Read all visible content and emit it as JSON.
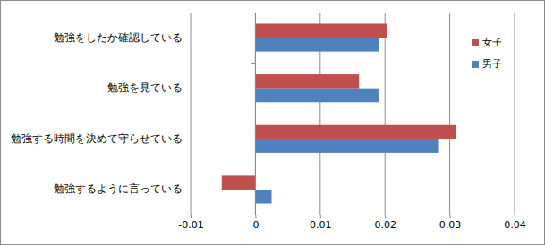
{
  "chart_data": {
    "type": "bar",
    "orientation": "horizontal",
    "categories": [
      "勉強をしたか確認している",
      "勉強を見ている",
      "勉強する時間を決めて守らせている",
      "勉強するように言っている"
    ],
    "series": [
      {
        "name": "女子",
        "color": "#c0504d",
        "values": [
          0.0203,
          0.016,
          0.0309,
          -0.0052
        ]
      },
      {
        "name": "男子",
        "color": "#4f81bd",
        "values": [
          0.0191,
          0.019,
          0.0282,
          0.0025
        ]
      }
    ],
    "xlim": [
      -0.01,
      0.04
    ],
    "xticks": [
      -0.01,
      0,
      0.01,
      0.02,
      0.03,
      0.04
    ],
    "grid": true,
    "legend": "upper right"
  }
}
